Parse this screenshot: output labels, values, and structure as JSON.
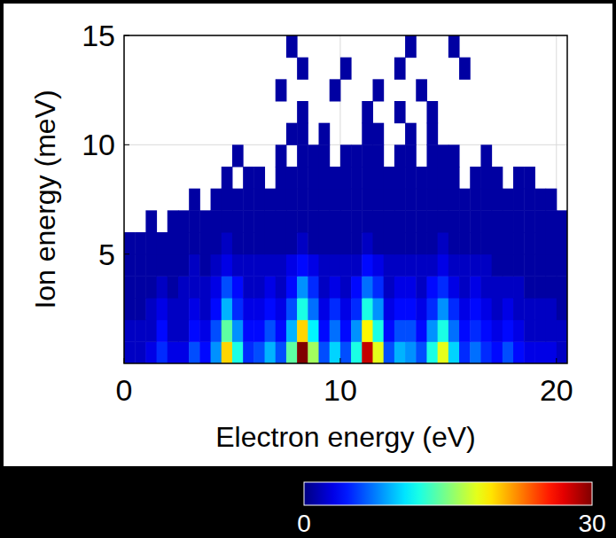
{
  "chart_data": {
    "type": "heatmap",
    "x_label": "Electron energy (eV)",
    "y_label": "Ion energy (meV)",
    "xlim": [
      0,
      20.5
    ],
    "ylim": [
      0,
      15
    ],
    "xticks": [
      0,
      10,
      20
    ],
    "yticks": [
      5,
      10,
      15
    ],
    "grid": true,
    "x_bins": [
      0,
      0.5,
      1,
      1.5,
      2,
      2.5,
      3,
      3.5,
      4,
      4.5,
      5,
      5.5,
      6,
      6.5,
      7,
      7.5,
      8,
      8.5,
      9,
      9.5,
      10,
      10.5,
      11,
      11.5,
      12,
      12.5,
      13,
      13.5,
      14,
      14.5,
      15,
      15.5,
      16,
      16.5,
      17,
      17.5,
      18,
      18.5,
      19,
      19.5,
      20,
      20.5
    ],
    "y_bins": [
      0,
      1,
      2,
      3,
      4,
      5,
      6,
      7,
      8,
      9,
      10,
      11,
      12,
      13,
      14,
      15
    ],
    "cells": [
      [
        2,
        2,
        3,
        5,
        3,
        3,
        6,
        4,
        8,
        20,
        12,
        5,
        6,
        9,
        6,
        14,
        30,
        16,
        6,
        10,
        6,
        12,
        28,
        18,
        6,
        9,
        8,
        6,
        12,
        18,
        10,
        5,
        7,
        5,
        4,
        6,
        4,
        3,
        3,
        3,
        2
      ],
      [
        2,
        2,
        2,
        4,
        2,
        2,
        4,
        3,
        6,
        14,
        8,
        4,
        4,
        6,
        4,
        9,
        20,
        11,
        4,
        7,
        4,
        8,
        19,
        12,
        4,
        6,
        6,
        4,
        8,
        12,
        7,
        4,
        5,
        4,
        3,
        4,
        3,
        2,
        2,
        2,
        2
      ],
      [
        1,
        1,
        2,
        3,
        2,
        2,
        3,
        2,
        4,
        9,
        5,
        3,
        3,
        4,
        3,
        6,
        12,
        7,
        3,
        5,
        3,
        5,
        12,
        8,
        3,
        4,
        4,
        3,
        5,
        8,
        5,
        3,
        4,
        3,
        2,
        3,
        2,
        2,
        2,
        2,
        1
      ],
      [
        1,
        1,
        1,
        2,
        1,
        2,
        2,
        2,
        3,
        6,
        4,
        2,
        2,
        3,
        2,
        4,
        8,
        5,
        2,
        3,
        2,
        4,
        7,
        5,
        2,
        3,
        3,
        2,
        4,
        5,
        3,
        2,
        3,
        2,
        2,
        2,
        2,
        1,
        1,
        1,
        1
      ],
      [
        1,
        1,
        1,
        1,
        1,
        1,
        2,
        1,
        2,
        3,
        2,
        2,
        2,
        2,
        2,
        3,
        4,
        3,
        2,
        2,
        2,
        2,
        4,
        3,
        2,
        2,
        2,
        2,
        2,
        3,
        2,
        2,
        2,
        2,
        1,
        1,
        1,
        1,
        1,
        1,
        1
      ],
      [
        1,
        1,
        1,
        1,
        1,
        1,
        1,
        1,
        1,
        2,
        1,
        1,
        1,
        1,
        1,
        1,
        2,
        1,
        1,
        1,
        1,
        1,
        2,
        1,
        1,
        1,
        1,
        1,
        1,
        2,
        1,
        1,
        1,
        1,
        1,
        1,
        1,
        1,
        1,
        1,
        1
      ],
      [
        null,
        null,
        1,
        null,
        1,
        1,
        1,
        1,
        1,
        1,
        1,
        1,
        1,
        1,
        1,
        1,
        1,
        1,
        1,
        1,
        1,
        1,
        1,
        1,
        1,
        1,
        1,
        1,
        1,
        1,
        1,
        1,
        1,
        1,
        1,
        1,
        1,
        1,
        1,
        1,
        1
      ],
      [
        null,
        null,
        null,
        null,
        null,
        null,
        1,
        null,
        1,
        1,
        1,
        1,
        1,
        1,
        1,
        1,
        1,
        1,
        1,
        1,
        1,
        1,
        1,
        1,
        1,
        1,
        1,
        1,
        1,
        1,
        1,
        1,
        1,
        1,
        1,
        1,
        1,
        1,
        1,
        1,
        null
      ],
      [
        null,
        null,
        null,
        null,
        null,
        null,
        null,
        null,
        null,
        1,
        null,
        1,
        1,
        null,
        1,
        1,
        1,
        1,
        1,
        1,
        1,
        1,
        1,
        1,
        1,
        1,
        1,
        1,
        1,
        1,
        1,
        null,
        1,
        1,
        1,
        null,
        1,
        1,
        null,
        null,
        null
      ],
      [
        null,
        null,
        null,
        null,
        null,
        null,
        null,
        null,
        null,
        null,
        1,
        null,
        null,
        null,
        1,
        null,
        1,
        1,
        1,
        null,
        1,
        1,
        1,
        1,
        null,
        1,
        1,
        null,
        1,
        1,
        1,
        null,
        null,
        1,
        null,
        null,
        null,
        null,
        null,
        null,
        null
      ],
      [
        null,
        null,
        null,
        null,
        null,
        null,
        null,
        null,
        null,
        null,
        null,
        null,
        null,
        null,
        null,
        1,
        1,
        null,
        1,
        null,
        null,
        null,
        1,
        1,
        null,
        null,
        1,
        null,
        1,
        null,
        null,
        null,
        null,
        null,
        null,
        null,
        null,
        null,
        null,
        null,
        null
      ],
      [
        null,
        null,
        null,
        null,
        null,
        null,
        null,
        null,
        null,
        null,
        null,
        null,
        null,
        null,
        null,
        null,
        1,
        null,
        null,
        null,
        null,
        null,
        1,
        null,
        null,
        1,
        null,
        null,
        1,
        null,
        null,
        null,
        null,
        null,
        null,
        null,
        null,
        null,
        null,
        null,
        null
      ],
      [
        null,
        null,
        null,
        null,
        null,
        null,
        null,
        null,
        null,
        null,
        null,
        null,
        null,
        null,
        1,
        null,
        null,
        null,
        null,
        1,
        null,
        null,
        null,
        1,
        null,
        null,
        null,
        1,
        null,
        null,
        null,
        null,
        null,
        null,
        null,
        null,
        null,
        null,
        null,
        null,
        null
      ],
      [
        null,
        null,
        null,
        null,
        null,
        null,
        null,
        null,
        null,
        null,
        null,
        null,
        null,
        null,
        null,
        null,
        1,
        null,
        null,
        null,
        1,
        null,
        null,
        null,
        null,
        1,
        null,
        null,
        null,
        null,
        null,
        1,
        null,
        null,
        null,
        null,
        null,
        null,
        null,
        null,
        null
      ],
      [
        null,
        null,
        null,
        null,
        null,
        null,
        null,
        null,
        null,
        null,
        null,
        null,
        null,
        null,
        null,
        1,
        null,
        null,
        null,
        null,
        null,
        null,
        null,
        null,
        null,
        null,
        1,
        null,
        null,
        null,
        1,
        null,
        null,
        null,
        null,
        null,
        null,
        null,
        null,
        null,
        null
      ]
    ],
    "colorbar": {
      "range": [
        0,
        30
      ],
      "ticks": [
        0,
        30
      ]
    }
  }
}
